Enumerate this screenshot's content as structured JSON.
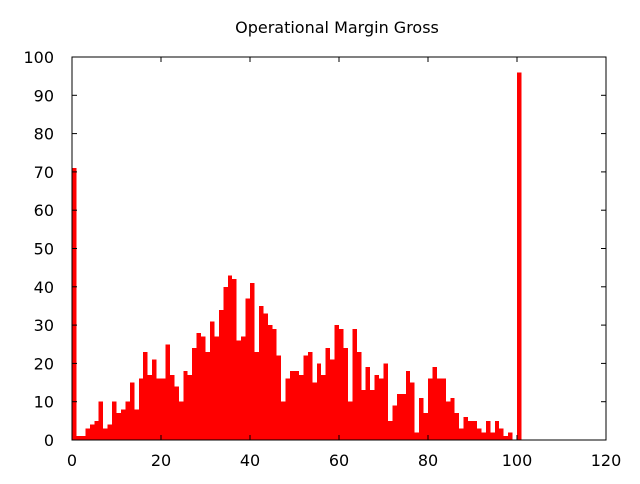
{
  "chart_data": {
    "type": "bar",
    "title": "Operational Margin Gross",
    "xlabel": "",
    "ylabel": "",
    "xlim": [
      0,
      120
    ],
    "ylim": [
      0,
      100
    ],
    "xticks": [
      "0",
      "20",
      "40",
      "60",
      "80",
      "100",
      "120"
    ],
    "yticks": [
      "0",
      "10",
      "20",
      "30",
      "40",
      "50",
      "60",
      "70",
      "80",
      "90",
      "100"
    ],
    "grid": false,
    "legend": "none",
    "bar_color": "#ff0000",
    "bin_width": 1,
    "x": [
      0,
      1,
      2,
      3,
      4,
      5,
      6,
      7,
      8,
      9,
      10,
      11,
      12,
      13,
      14,
      15,
      16,
      17,
      18,
      19,
      20,
      21,
      22,
      23,
      24,
      25,
      26,
      27,
      28,
      29,
      30,
      31,
      32,
      33,
      34,
      35,
      36,
      37,
      38,
      39,
      40,
      41,
      42,
      43,
      44,
      45,
      46,
      47,
      48,
      49,
      50,
      51,
      52,
      53,
      54,
      55,
      56,
      57,
      58,
      59,
      60,
      61,
      62,
      63,
      64,
      65,
      66,
      67,
      68,
      69,
      70,
      71,
      72,
      73,
      74,
      75,
      76,
      77,
      78,
      79,
      80,
      81,
      82,
      83,
      84,
      85,
      86,
      87,
      88,
      89,
      90,
      91,
      92,
      93,
      94,
      95,
      96,
      97,
      98,
      99,
      100
    ],
    "values": [
      71,
      1,
      1,
      3,
      4,
      5,
      10,
      3,
      4,
      10,
      7,
      8,
      10,
      15,
      8,
      16,
      23,
      17,
      21,
      16,
      16,
      25,
      17,
      14,
      10,
      18,
      17,
      24,
      28,
      27,
      23,
      31,
      27,
      34,
      40,
      43,
      42,
      26,
      27,
      37,
      41,
      23,
      35,
      33,
      30,
      29,
      22,
      10,
      16,
      18,
      18,
      17,
      22,
      23,
      15,
      20,
      17,
      24,
      21,
      30,
      29,
      24,
      10,
      29,
      23,
      13,
      19,
      13,
      17,
      16,
      20,
      5,
      9,
      12,
      12,
      18,
      15,
      2,
      11,
      7,
      16,
      19,
      16,
      16,
      10,
      11,
      7,
      3,
      6,
      5,
      5,
      3,
      2,
      5,
      2,
      5,
      3,
      1,
      2,
      0,
      96
    ]
  }
}
